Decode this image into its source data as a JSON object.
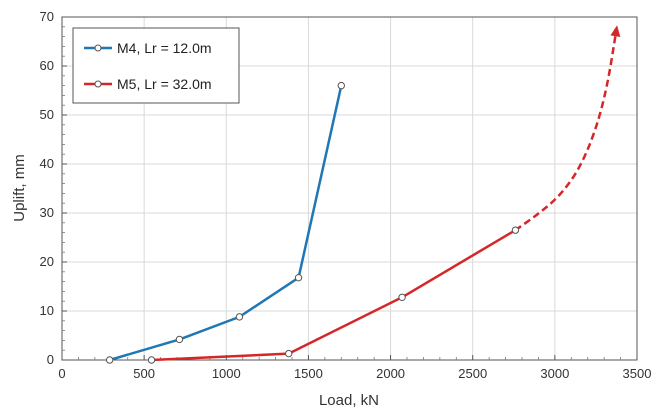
{
  "chart_data": {
    "type": "line",
    "title": "",
    "xlabel": "Load, kN",
    "ylabel": "Uplift,  mm",
    "xlim": [
      0,
      3500
    ],
    "ylim": [
      0,
      70
    ],
    "xticks": [
      0,
      500,
      1000,
      1500,
      2000,
      2500,
      3000,
      3500
    ],
    "yticks": [
      0,
      10,
      20,
      30,
      40,
      50,
      60,
      70
    ],
    "grid": true,
    "legend_position": "top-left",
    "series": [
      {
        "name": "M4, Lr = 12.0m",
        "color": "#1f77b4",
        "marker": "open-circle",
        "x": [
          290,
          715,
          1080,
          1440,
          1700
        ],
        "y": [
          0,
          4.2,
          8.8,
          16.8,
          56.0
        ]
      },
      {
        "name": "M5, Lr = 32.0m",
        "color": "#d62728",
        "marker": "open-circle",
        "x": [
          545,
          1380,
          2070,
          2760
        ],
        "y": [
          0,
          1.3,
          12.8,
          26.5
        ]
      }
    ],
    "annotations": [
      {
        "type": "dashed-arrow-extrapolation",
        "series": "M5, Lr = 32.0m",
        "color": "#d62728",
        "x": [
          2760,
          2900,
          3030,
          3150,
          3250,
          3320,
          3375
        ],
        "y": [
          26.5,
          29.8,
          33.5,
          39.0,
          47.0,
          56.0,
          67.5
        ]
      }
    ]
  }
}
